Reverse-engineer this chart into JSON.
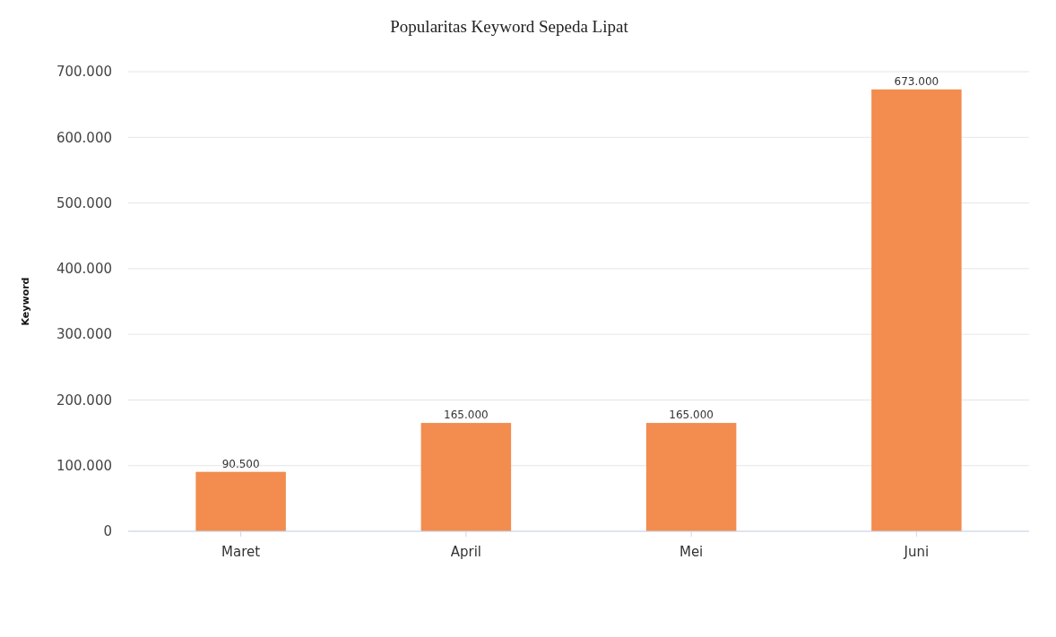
{
  "chart_data": {
    "type": "bar",
    "title": "Popularitas Keyword Sepeda Lipat",
    "ylabel": "Keyword",
    "categories": [
      "Maret",
      "April",
      "Mei",
      "Juni"
    ],
    "values": [
      90500,
      165000,
      165000,
      673000
    ],
    "value_labels": [
      "90.500",
      "165.000",
      "165.000",
      "673.000"
    ],
    "color": "#f28c4f",
    "ylim": [
      0,
      700000
    ],
    "yticks": [
      {
        "value": 0,
        "label": "0"
      },
      {
        "value": 100000,
        "label": "100.000"
      },
      {
        "value": 200000,
        "label": "200.000"
      },
      {
        "value": 300000,
        "label": "300.000"
      },
      {
        "value": 400000,
        "label": "400.000"
      },
      {
        "value": 500000,
        "label": "500.000"
      },
      {
        "value": 600000,
        "label": "600.000"
      },
      {
        "value": 700000,
        "label": "700.000"
      }
    ],
    "grid": "y"
  }
}
